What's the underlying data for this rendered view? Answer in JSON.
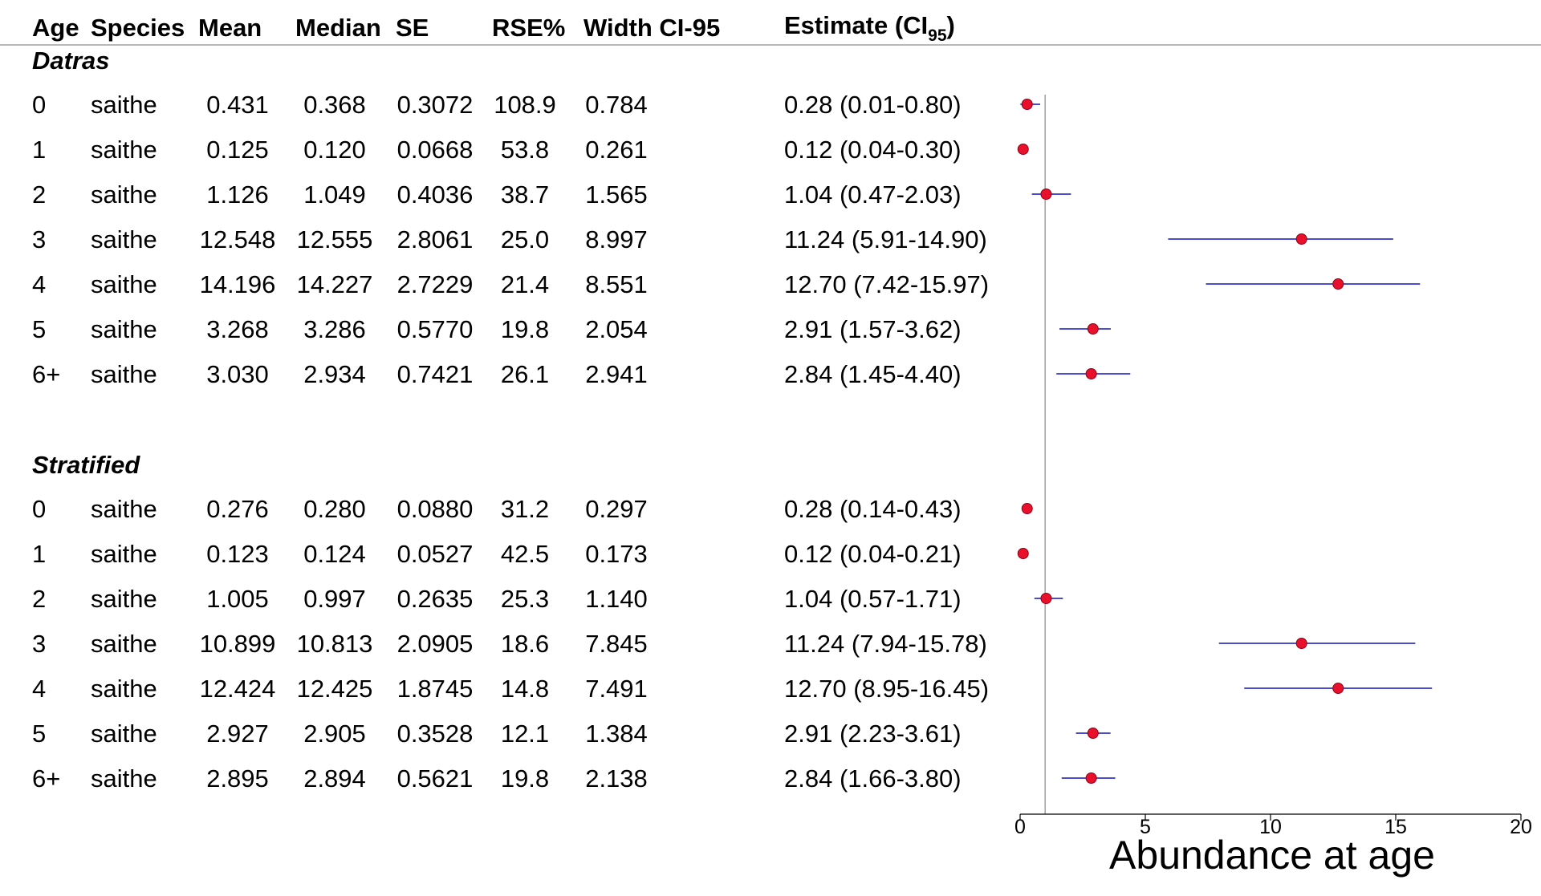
{
  "table": {
    "columns": [
      "Age",
      "Species",
      "Mean",
      "Median",
      "SE",
      "RSE%",
      "Width CI-95"
    ],
    "estimate_header": {
      "main": "Estimate (",
      "ci": "CI",
      "sub": "95",
      "close": ")"
    }
  },
  "chart_data": {
    "type": "forest",
    "xlabel": "Abundance at age",
    "xlim": [
      0,
      20
    ],
    "xticks": [
      "0",
      "5",
      "10",
      "15",
      "20"
    ],
    "reference_line": 1,
    "colors": {
      "point": "#e8102a",
      "ci_line": "#1010c0",
      "ref_line": "#a0a0a0"
    },
    "groups": [
      {
        "name": "Datras",
        "rows": [
          {
            "age": "0",
            "species": "saithe",
            "mean": "0.431",
            "median": "0.368",
            "se": "0.3072",
            "rse": "108.9",
            "width": "0.784",
            "estimate_text": "0.28 (0.01-0.80)",
            "est": 0.28,
            "lo": 0.01,
            "hi": 0.8
          },
          {
            "age": "1",
            "species": "saithe",
            "mean": "0.125",
            "median": "0.120",
            "se": "0.0668",
            "rse": "53.8",
            "width": "0.261",
            "estimate_text": "0.12 (0.04-0.30)",
            "est": 0.12,
            "lo": 0.04,
            "hi": 0.3
          },
          {
            "age": "2",
            "species": "saithe",
            "mean": "1.126",
            "median": "1.049",
            "se": "0.4036",
            "rse": "38.7",
            "width": "1.565",
            "estimate_text": "1.04 (0.47-2.03)",
            "est": 1.04,
            "lo": 0.47,
            "hi": 2.03
          },
          {
            "age": "3",
            "species": "saithe",
            "mean": "12.548",
            "median": "12.555",
            "se": "2.8061",
            "rse": "25.0",
            "width": "8.997",
            "estimate_text": "11.24 (5.91-14.90)",
            "est": 11.24,
            "lo": 5.91,
            "hi": 14.9
          },
          {
            "age": "4",
            "species": "saithe",
            "mean": "14.196",
            "median": "14.227",
            "se": "2.7229",
            "rse": "21.4",
            "width": "8.551",
            "estimate_text": "12.70 (7.42-15.97)",
            "est": 12.7,
            "lo": 7.42,
            "hi": 15.97
          },
          {
            "age": "5",
            "species": "saithe",
            "mean": "3.268",
            "median": "3.286",
            "se": "0.5770",
            "rse": "19.8",
            "width": "2.054",
            "estimate_text": "2.91 (1.57-3.62)",
            "est": 2.91,
            "lo": 1.57,
            "hi": 3.62
          },
          {
            "age": "6+",
            "species": "saithe",
            "mean": "3.030",
            "median": "2.934",
            "se": "0.7421",
            "rse": "26.1",
            "width": "2.941",
            "estimate_text": "2.84 (1.45-4.40)",
            "est": 2.84,
            "lo": 1.45,
            "hi": 4.4
          }
        ]
      },
      {
        "name": "Stratified",
        "rows": [
          {
            "age": "0",
            "species": "saithe",
            "mean": "0.276",
            "median": "0.280",
            "se": "0.0880",
            "rse": "31.2",
            "width": "0.297",
            "estimate_text": "0.28 (0.14-0.43)",
            "est": 0.28,
            "lo": 0.14,
            "hi": 0.43
          },
          {
            "age": "1",
            "species": "saithe",
            "mean": "0.123",
            "median": "0.124",
            "se": "0.0527",
            "rse": "42.5",
            "width": "0.173",
            "estimate_text": "0.12 (0.04-0.21)",
            "est": 0.12,
            "lo": 0.04,
            "hi": 0.21
          },
          {
            "age": "2",
            "species": "saithe",
            "mean": "1.005",
            "median": "0.997",
            "se": "0.2635",
            "rse": "25.3",
            "width": "1.140",
            "estimate_text": "1.04 (0.57-1.71)",
            "est": 1.04,
            "lo": 0.57,
            "hi": 1.71
          },
          {
            "age": "3",
            "species": "saithe",
            "mean": "10.899",
            "median": "10.813",
            "se": "2.0905",
            "rse": "18.6",
            "width": "7.845",
            "estimate_text": "11.24 (7.94-15.78)",
            "est": 11.24,
            "lo": 7.94,
            "hi": 15.78
          },
          {
            "age": "4",
            "species": "saithe",
            "mean": "12.424",
            "median": "12.425",
            "se": "1.8745",
            "rse": "14.8",
            "width": "7.491",
            "estimate_text": "12.70 (8.95-16.45)",
            "est": 12.7,
            "lo": 8.95,
            "hi": 16.45
          },
          {
            "age": "5",
            "species": "saithe",
            "mean": "2.927",
            "median": "2.905",
            "se": "0.3528",
            "rse": "12.1",
            "width": "1.384",
            "estimate_text": "2.91 (2.23-3.61)",
            "est": 2.91,
            "lo": 2.23,
            "hi": 3.61
          },
          {
            "age": "6+",
            "species": "saithe",
            "mean": "2.895",
            "median": "2.894",
            "se": "0.5621",
            "rse": "19.8",
            "width": "2.138",
            "estimate_text": "2.84 (1.66-3.80)",
            "est": 2.84,
            "lo": 1.66,
            "hi": 3.8
          }
        ]
      }
    ]
  }
}
